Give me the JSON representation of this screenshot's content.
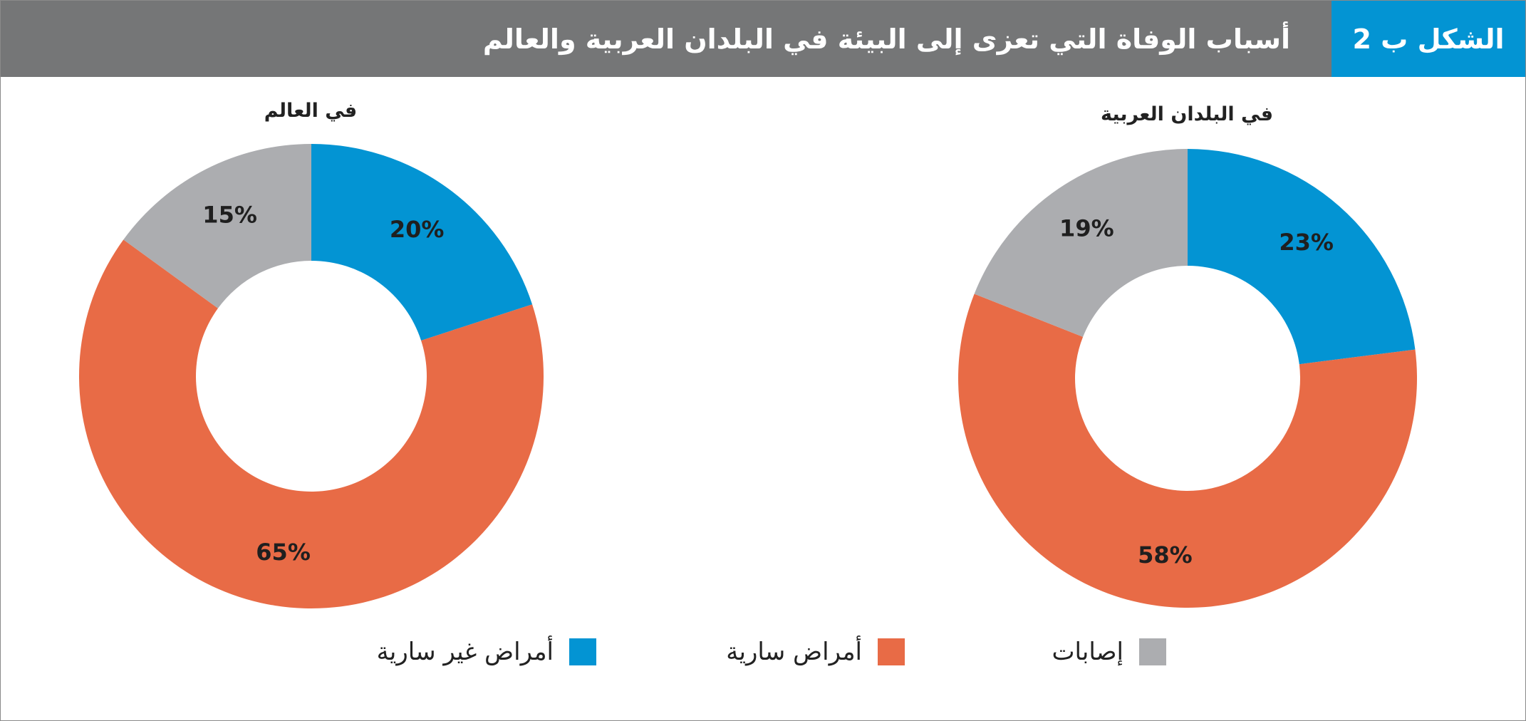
{
  "header": {
    "figure_label": "الشكل ب 2",
    "title": "أسباب الوفاة التي تعزى إلى البيئة في البلدان العربية والعالم"
  },
  "colors": {
    "header_bg": "#757677",
    "label_bg": "#0394d3",
    "noncommunicable": "#0394d3",
    "communicable": "#e86b46",
    "injuries": "#acadb0"
  },
  "legend": [
    {
      "label": "أمراض غير سارية",
      "color": "#0394d3"
    },
    {
      "label": "أمراض سارية",
      "color": "#e86b46"
    },
    {
      "label": "إصابات",
      "color": "#acadb0"
    }
  ],
  "chart_data": [
    {
      "type": "pie",
      "title": "في العالم",
      "donut": true,
      "categories": [
        "أمراض غير سارية",
        "أمراض سارية",
        "إصابات"
      ],
      "values": [
        20,
        65,
        15
      ],
      "labels": [
        "20%",
        "65%",
        "15%"
      ],
      "colors": [
        "#0394d3",
        "#e86b46",
        "#acadb0"
      ],
      "start": "12 o'clock, clockwise"
    },
    {
      "type": "pie",
      "title": "في البلدان العربية",
      "donut": true,
      "categories": [
        "أمراض غير سارية",
        "أمراض سارية",
        "إصابات"
      ],
      "values": [
        23,
        58,
        19
      ],
      "labels": [
        "23%",
        "58%",
        "19%"
      ],
      "colors": [
        "#0394d3",
        "#e86b46",
        "#acadb0"
      ],
      "start": "12 o'clock, clockwise"
    }
  ]
}
